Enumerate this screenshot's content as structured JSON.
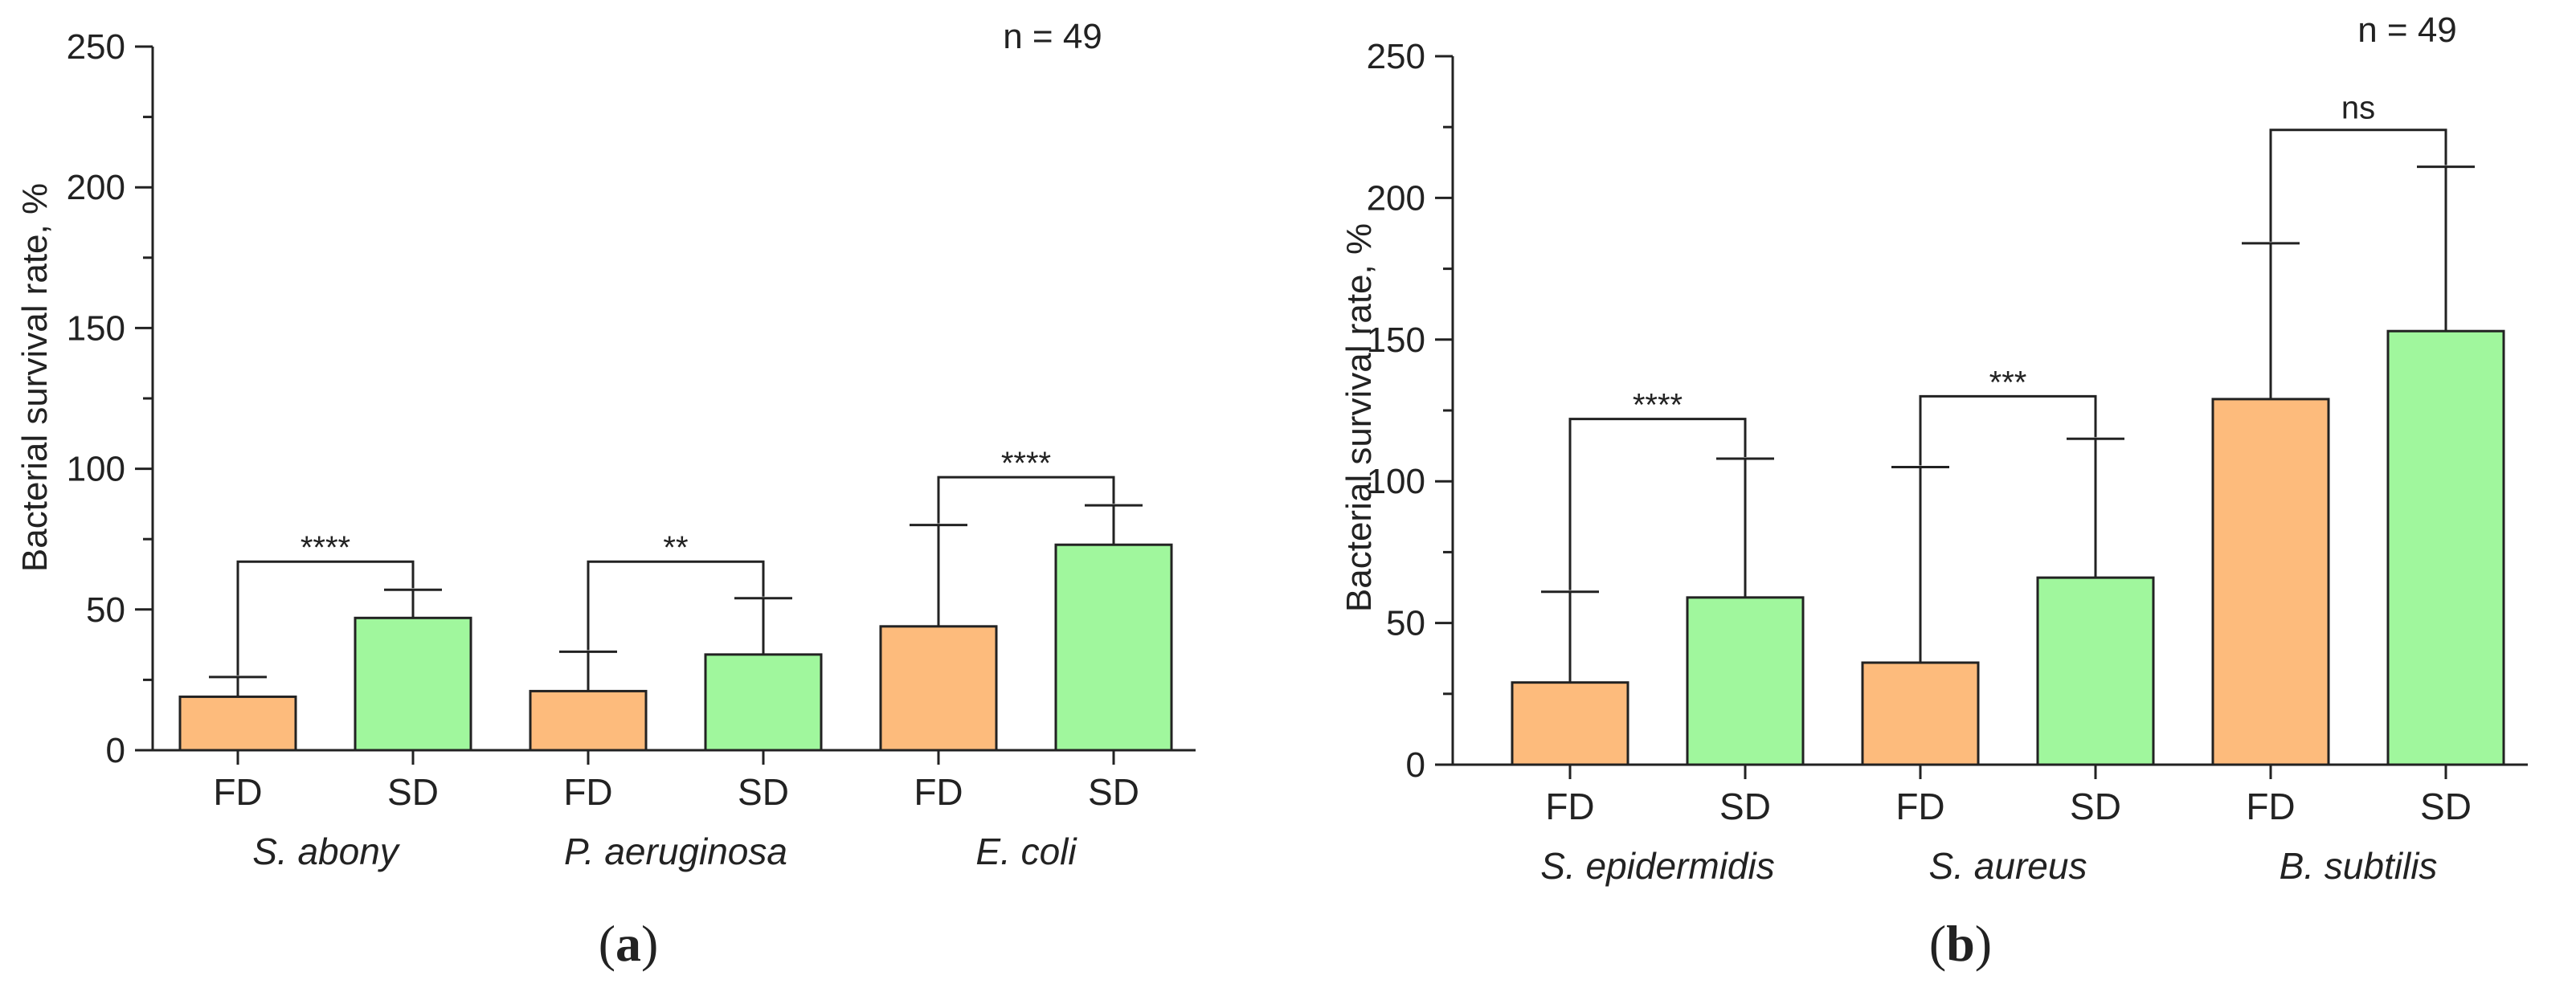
{
  "chart_data": [
    {
      "type": "bar",
      "panel_label": "a",
      "n_label": "n = 49",
      "ylabel": "Bacterial survival rate, %",
      "ylim": [
        0,
        250
      ],
      "yticks": [
        "0",
        "50",
        "100",
        "150",
        "200",
        "250"
      ],
      "categories": [
        "FD",
        "SD",
        "FD",
        "SD",
        "FD",
        "SD"
      ],
      "groups": [
        "S. abony",
        "P. aeruginosa",
        "E. coli"
      ],
      "values": [
        19,
        47,
        21,
        34,
        44,
        73
      ],
      "error_upper": [
        26,
        57,
        35,
        54,
        80,
        87
      ],
      "comparisons": [
        {
          "group": 0,
          "label": "****",
          "left_top": 26,
          "right_top": 57,
          "bracket_y": 67
        },
        {
          "group": 1,
          "label": "**",
          "left_top": 35,
          "right_top": 54,
          "bracket_y": 67
        },
        {
          "group": 2,
          "label": "****",
          "left_top": 80,
          "right_top": 87,
          "bracket_y": 97
        }
      ],
      "colors": {
        "FD": "#FDBB7C",
        "SD": "#A0F79D"
      }
    },
    {
      "type": "bar",
      "panel_label": "b",
      "n_label": "n = 49",
      "ylabel": "Bacterial survival rate, %",
      "ylim": [
        0,
        250
      ],
      "yticks": [
        "0",
        "50",
        "100",
        "150",
        "200",
        "250"
      ],
      "categories": [
        "FD",
        "SD",
        "FD",
        "SD",
        "FD",
        "SD"
      ],
      "groups": [
        "S. epidermidis",
        "S. aureus",
        "B. subtilis"
      ],
      "values": [
        29,
        59,
        36,
        66,
        129,
        153
      ],
      "error_upper": [
        61,
        108,
        105,
        115,
        184,
        211
      ],
      "comparisons": [
        {
          "group": 0,
          "label": "****",
          "left_top": 61,
          "right_top": 108,
          "bracket_y": 122
        },
        {
          "group": 1,
          "label": "***",
          "left_top": 105,
          "right_top": 115,
          "bracket_y": 130
        },
        {
          "group": 2,
          "label": "ns",
          "left_top": 184,
          "right_top": 211,
          "bracket_y": 224
        }
      ],
      "colors": {
        "FD": "#FDBB7C",
        "SD": "#A0F79D"
      }
    }
  ]
}
